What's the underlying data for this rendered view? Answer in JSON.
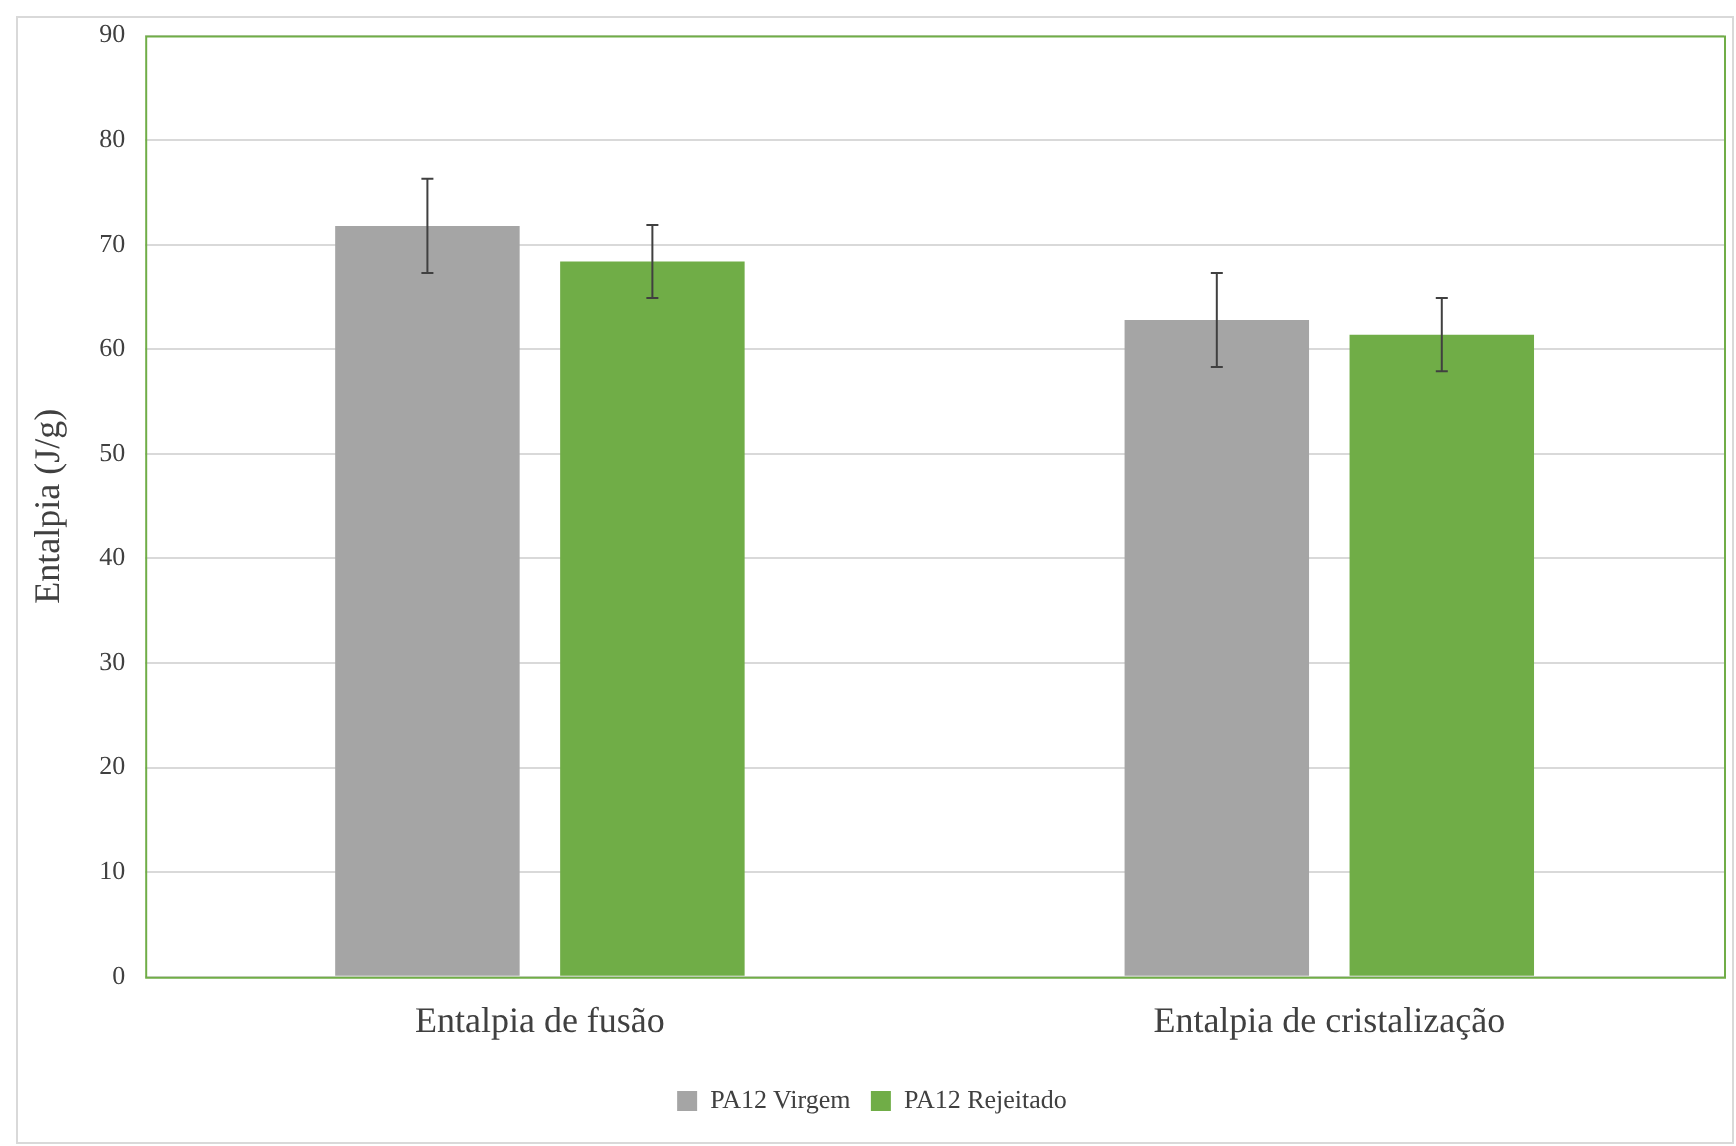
{
  "chart_data": {
    "type": "bar",
    "ylabel": "Entalpia (J/g)",
    "categories": [
      "Entalpia de fusão",
      "Entalpia de cristalização"
    ],
    "series": [
      {
        "name": "PA12 Virgem",
        "color": "#a5a5a5",
        "values": [
          71.8,
          62.8
        ],
        "errors": [
          4.5,
          4.5
        ]
      },
      {
        "name": "PA12 Rejeitado",
        "color": "#70ad47",
        "values": [
          68.4,
          61.4
        ],
        "errors": [
          3.5,
          3.5
        ]
      }
    ],
    "ylim": [
      0,
      90
    ],
    "yticks": [
      0,
      10,
      20,
      30,
      40,
      50,
      60,
      70,
      80,
      90
    ],
    "grid": "y",
    "legend": "bottom"
  }
}
